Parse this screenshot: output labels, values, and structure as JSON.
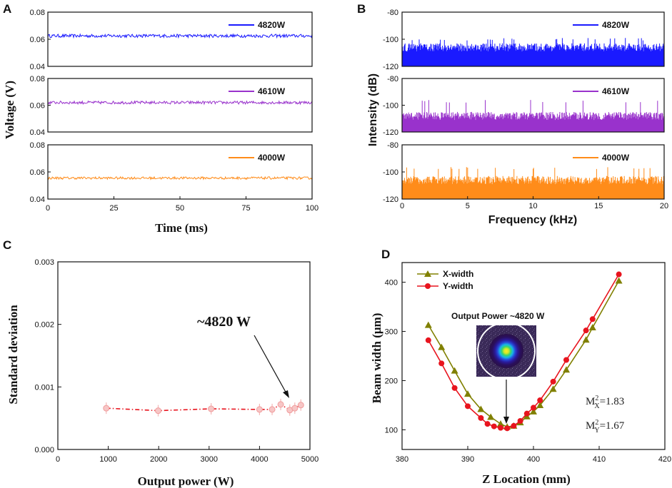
{
  "chart_data": [
    {
      "panel": "A",
      "type": "line",
      "title": "",
      "xlabel": "Time (ms)",
      "ylabel": "Voltage (V)",
      "xlim": [
        0,
        100
      ],
      "xticks": [
        "0",
        "25",
        "50",
        "75",
        "100"
      ],
      "subplots": [
        {
          "name": "4820W",
          "color": "#1a1aff",
          "ylim": [
            0.04,
            0.08
          ],
          "yticks": [
            "0.04",
            "0.06",
            "0.08"
          ],
          "mean": 0.0625,
          "noise_amp": 0.0012
        },
        {
          "name": "4610W",
          "color": "#9932cc",
          "ylim": [
            0.04,
            0.08
          ],
          "yticks": [
            "0.04",
            "0.06",
            "0.08"
          ],
          "mean": 0.062,
          "noise_amp": 0.0011
        },
        {
          "name": "4000W",
          "color": "#ff8c1a",
          "ylim": [
            0.04,
            0.08
          ],
          "yticks": [
            "0.04",
            "0.06",
            "0.08"
          ],
          "mean": 0.0555,
          "noise_amp": 0.0009
        }
      ]
    },
    {
      "panel": "B",
      "type": "line",
      "title": "",
      "xlabel": "Frequency (kHz)",
      "ylabel": "Intensity (dB)",
      "xlim": [
        0,
        20
      ],
      "xticks": [
        "0",
        "5",
        "10",
        "15",
        "20"
      ],
      "subplots": [
        {
          "name": "4820W",
          "color": "#1a1aff",
          "ylim": [
            -120,
            -80
          ],
          "yticks": [
            "-120",
            "-100",
            "-80"
          ],
          "floor": -120,
          "peak_mean": -106,
          "peak_max": -99
        },
        {
          "name": "4610W",
          "color": "#9932cc",
          "ylim": [
            -120,
            -80
          ],
          "yticks": [
            "-120",
            "-100",
            "-80"
          ],
          "floor": -120,
          "peak_mean": -108,
          "peak_max": -96
        },
        {
          "name": "4000W",
          "color": "#ff8c1a",
          "ylim": [
            -120,
            -80
          ],
          "yticks": [
            "-120",
            "-100",
            "-80"
          ],
          "floor": -120,
          "peak_mean": -106,
          "peak_max": -96
        }
      ]
    },
    {
      "panel": "C",
      "type": "scatter",
      "title": "",
      "xlabel": "Output power (W)",
      "ylabel": "Standard deviation",
      "xlim": [
        0,
        5000
      ],
      "ylim": [
        0,
        0.003
      ],
      "xticks": [
        "0",
        "1000",
        "2000",
        "3000",
        "4000",
        "5000"
      ],
      "yticks": [
        "0.000",
        "0.001",
        "0.002",
        "0.003"
      ],
      "x": [
        960,
        1990,
        3040,
        4000,
        4250,
        4420,
        4600,
        4700,
        4820
      ],
      "y": [
        0.00066,
        0.00062,
        0.00065,
        0.00064,
        0.00064,
        0.00072,
        0.00063,
        0.00066,
        0.00071
      ],
      "annotation": "~4820 W",
      "annotation_target": [
        4820,
        0.00071
      ]
    },
    {
      "panel": "D",
      "type": "line",
      "title": "",
      "xlabel": "Z Location (mm)",
      "ylabel": "Beam width (μm)",
      "xlim": [
        380,
        420
      ],
      "ylim": [
        60,
        440
      ],
      "xticks": [
        "380",
        "390",
        "400",
        "410",
        "420"
      ],
      "yticks": [
        "100",
        "200",
        "300",
        "400"
      ],
      "series": [
        {
          "name": "X-width",
          "color": "#808000",
          "marker": "triangle",
          "x": [
            384,
            386,
            388,
            390,
            392,
            393.5,
            395,
            396,
            397,
            398,
            399,
            400,
            401,
            403,
            405,
            408,
            409,
            413
          ],
          "y": [
            313,
            268,
            220,
            173,
            142,
            126,
            112,
            106,
            108,
            115,
            127,
            137,
            150,
            183,
            222,
            283,
            308,
            403
          ]
        },
        {
          "name": "Y-width",
          "color": "#e8141e",
          "marker": "circle",
          "x": [
            384,
            386,
            388,
            390,
            392,
            393,
            394,
            395,
            396,
            397,
            398,
            399,
            400,
            401,
            403,
            405,
            408,
            409,
            413
          ],
          "y": [
            282,
            235,
            185,
            148,
            124,
            112,
            107,
            104,
            103,
            108,
            118,
            133,
            145,
            160,
            198,
            242,
            302,
            325,
            416
          ]
        }
      ],
      "inset_label": "Output Power ~4820 W",
      "m2x": {
        "prefix": "M",
        "sup": "2",
        "sub": "X",
        "value": "=1.83"
      },
      "m2y": {
        "prefix": "M",
        "sup": "2",
        "sub": "Y",
        "value": "=1.67"
      }
    }
  ],
  "labels": {
    "A": "A",
    "B": "B",
    "C": "C",
    "D": "D"
  }
}
